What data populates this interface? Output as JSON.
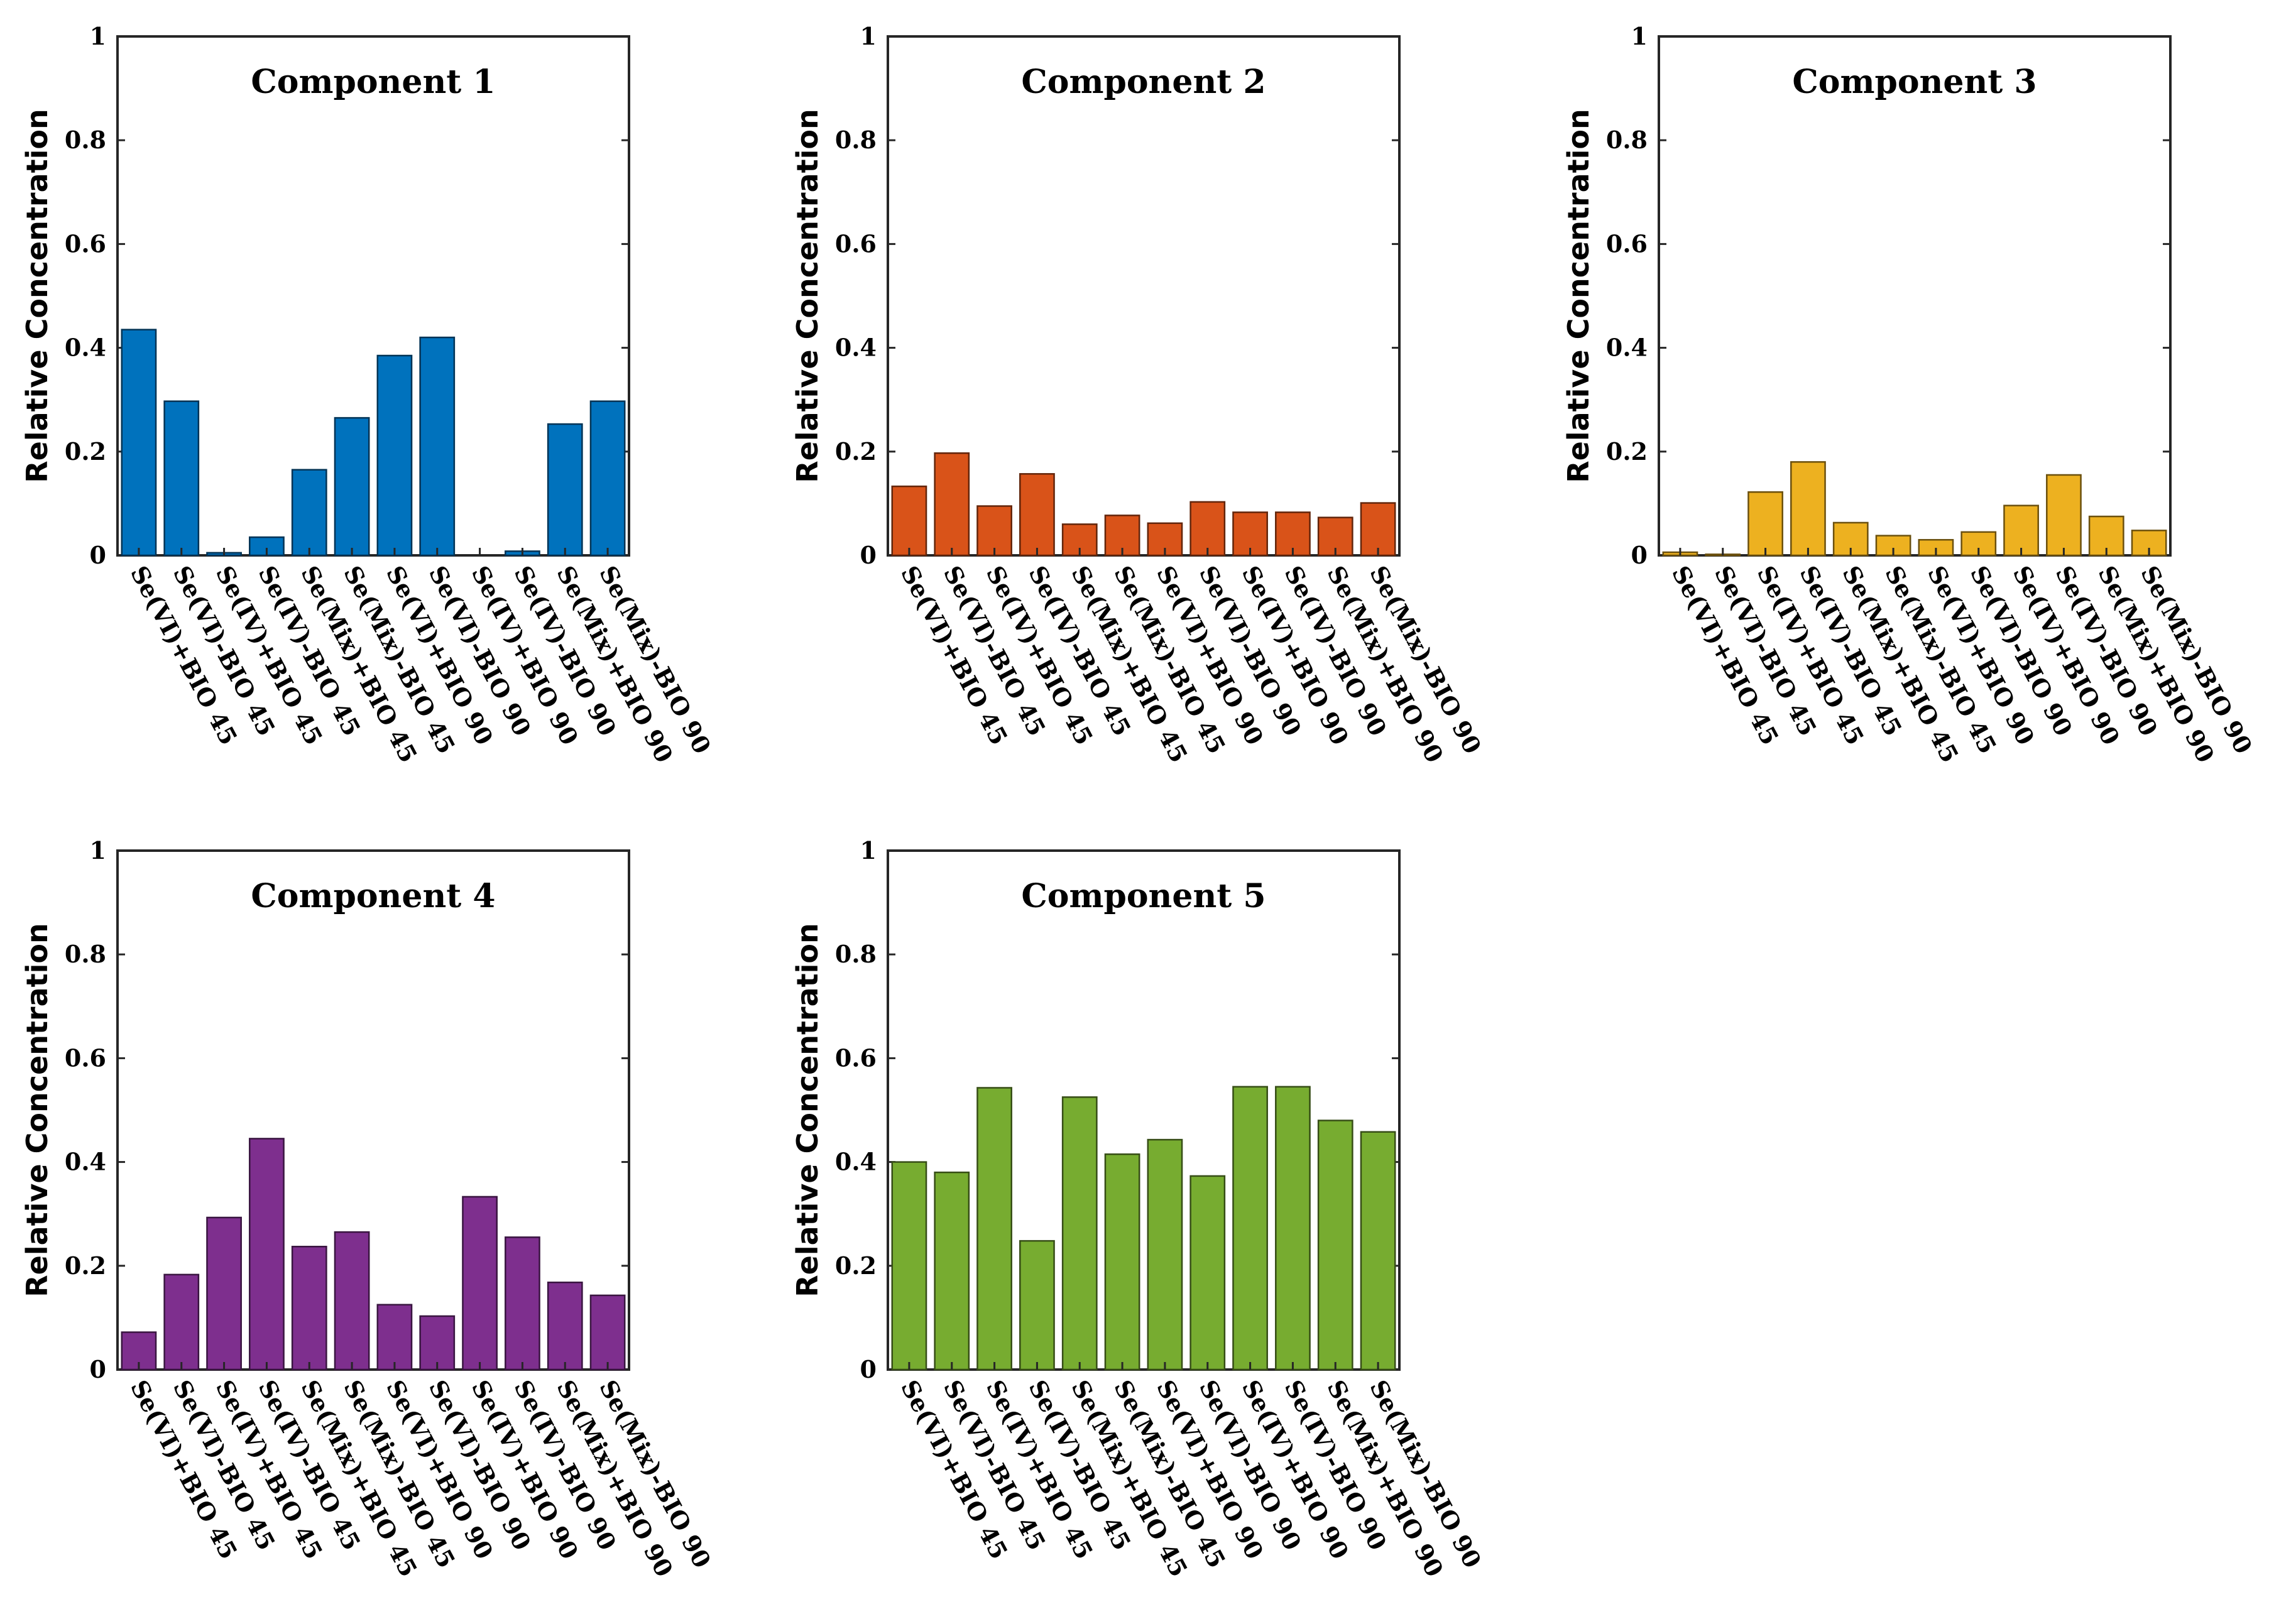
{
  "chart_data": [
    {
      "type": "bar",
      "title": "Component 1",
      "ylabel": "Relative Concentration",
      "xlabel": "",
      "ylim": [
        0,
        1
      ],
      "yticks": [
        "0",
        "0.2",
        "0.4",
        "0.6",
        "0.8",
        "1"
      ],
      "categories": [
        "Se(VI)+BIO 45",
        "Se(VI)-BIO 45",
        "Se(IV)+BIO 45",
        "Se(IV)-BIO 45",
        "Se(Mix)+BIO 45",
        "Se(Mix)-BIO 45",
        "Se(VI)+BIO 90",
        "Se(VI)-BIO 90",
        "Se(IV)+BIO 90",
        "Se(IV)-BIO 90",
        "Se(Mix)+BIO 90",
        "Se(Mix)-BIO 90"
      ],
      "values": [
        0.435,
        0.297,
        0.005,
        0.035,
        0.165,
        0.265,
        0.385,
        0.42,
        0.0,
        0.008,
        0.253,
        0.297
      ],
      "color": "#0072BD"
    },
    {
      "type": "bar",
      "title": "Component 2",
      "ylabel": "Relative Concentration",
      "xlabel": "",
      "ylim": [
        0,
        1
      ],
      "yticks": [
        "0",
        "0.2",
        "0.4",
        "0.6",
        "0.8",
        "1"
      ],
      "categories": [
        "Se(VI)+BIO 45",
        "Se(VI)-BIO 45",
        "Se(IV)+BIO 45",
        "Se(IV)-BIO 45",
        "Se(Mix)+BIO 45",
        "Se(Mix)-BIO 45",
        "Se(VI)+BIO 90",
        "Se(VI)-BIO 90",
        "Se(IV)+BIO 90",
        "Se(IV)-BIO 90",
        "Se(Mix)+BIO 90",
        "Se(Mix)-BIO 90"
      ],
      "values": [
        0.133,
        0.197,
        0.095,
        0.157,
        0.06,
        0.077,
        0.062,
        0.103,
        0.083,
        0.083,
        0.073,
        0.101
      ],
      "color": "#D95319"
    },
    {
      "type": "bar",
      "title": "Component 3",
      "ylabel": "Relative Concentration",
      "xlabel": "",
      "ylim": [
        0,
        1
      ],
      "yticks": [
        "0",
        "0.2",
        "0.4",
        "0.6",
        "0.8",
        "1"
      ],
      "categories": [
        "Se(VI)+BIO 45",
        "Se(VI)-BIO 45",
        "Se(IV)+BIO 45",
        "Se(IV)-BIO 45",
        "Se(Mix)+BIO 45",
        "Se(Mix)-BIO 45",
        "Se(VI)+BIO 90",
        "Se(VI)-BIO 90",
        "Se(IV)+BIO 90",
        "Se(IV)-BIO 90",
        "Se(Mix)+BIO 90",
        "Se(Mix)-BIO 90"
      ],
      "values": [
        0.006,
        0.002,
        0.122,
        0.18,
        0.063,
        0.038,
        0.03,
        0.045,
        0.096,
        0.155,
        0.075,
        0.048
      ],
      "color": "#EDB120"
    },
    {
      "type": "bar",
      "title": "Component 4",
      "ylabel": "Relative Concentration",
      "xlabel": "",
      "ylim": [
        0,
        1
      ],
      "yticks": [
        "0",
        "0.2",
        "0.4",
        "0.6",
        "0.8",
        "1"
      ],
      "categories": [
        "Se(VI)+BIO 45",
        "Se(VI)-BIO 45",
        "Se(IV)+BIO 45",
        "Se(IV)-BIO 45",
        "Se(Mix)+BIO 45",
        "Se(Mix)-BIO 45",
        "Se(VI)+BIO 90",
        "Se(VI)-BIO 90",
        "Se(IV)+BIO 90",
        "Se(IV)-BIO 90",
        "Se(Mix)+BIO 90",
        "Se(Mix)-BIO 90"
      ],
      "values": [
        0.072,
        0.183,
        0.293,
        0.445,
        0.237,
        0.265,
        0.125,
        0.103,
        0.333,
        0.255,
        0.168,
        0.143
      ],
      "color": "#7E2F8E"
    },
    {
      "type": "bar",
      "title": "Component 5",
      "ylabel": "Relative Concentration",
      "xlabel": "",
      "ylim": [
        0,
        1
      ],
      "yticks": [
        "0",
        "0.2",
        "0.4",
        "0.6",
        "0.8",
        "1"
      ],
      "categories": [
        "Se(VI)+BIO 45",
        "Se(VI)-BIO 45",
        "Se(IV)+BIO 45",
        "Se(IV)-BIO 45",
        "Se(Mix)+BIO 45",
        "Se(Mix)-BIO 45",
        "Se(VI)+BIO 90",
        "Se(VI)-BIO 90",
        "Se(IV)+BIO 90",
        "Se(IV)-BIO 90",
        "Se(Mix)+BIO 90",
        "Se(Mix)-BIO 90"
      ],
      "values": [
        0.4,
        0.38,
        0.543,
        0.248,
        0.525,
        0.415,
        0.443,
        0.373,
        0.545,
        0.545,
        0.48,
        0.458
      ],
      "color": "#77AC30"
    }
  ]
}
